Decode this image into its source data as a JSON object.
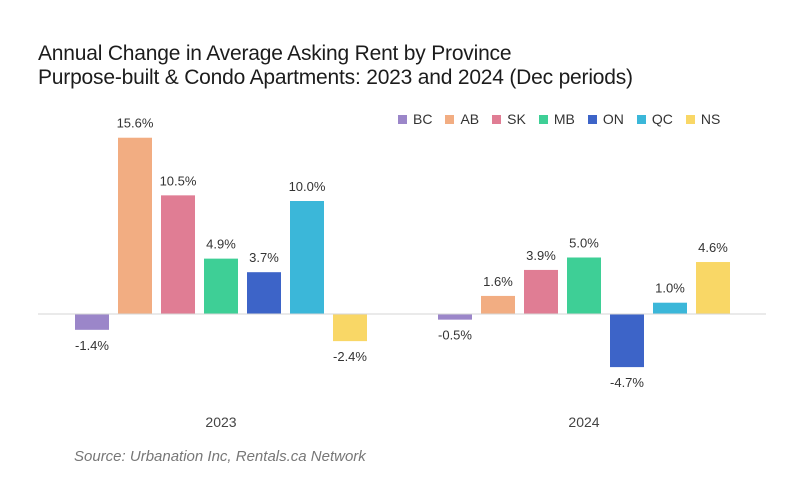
{
  "title_line1": "Annual Change in Average Asking Rent by Province",
  "title_line2": "Purpose-built & Condo Apartments: 2023 and 2024 (Dec periods)",
  "source": "Source: Urbanation Inc, Rentals.ca Network",
  "chart_data": {
    "type": "bar",
    "title": "Annual Change in Average Asking Rent by Province Purpose-built & Condo Apartments: 2023 and 2024 (Dec periods)",
    "categories": [
      "2023",
      "2024"
    ],
    "series": [
      {
        "name": "BC",
        "color": "#9b86c9",
        "values": [
          -1.4,
          -0.5
        ],
        "labels": [
          "-1.4%",
          "-0.5%"
        ]
      },
      {
        "name": "AB",
        "color": "#f2ad82",
        "values": [
          15.6,
          1.6
        ],
        "labels": [
          "15.6%",
          "1.6%"
        ]
      },
      {
        "name": "SK",
        "color": "#e07d94",
        "values": [
          10.5,
          3.9
        ],
        "labels": [
          "10.5%",
          "3.9%"
        ]
      },
      {
        "name": "MB",
        "color": "#3ecf96",
        "values": [
          4.9,
          5.0
        ],
        "labels": [
          "4.9%",
          "5.0%"
        ]
      },
      {
        "name": "ON",
        "color": "#3d64c8",
        "values": [
          3.7,
          -4.7
        ],
        "labels": [
          "3.7%",
          "-4.7%"
        ]
      },
      {
        "name": "QC",
        "color": "#3bb7d9",
        "values": [
          10.0,
          1.0
        ],
        "labels": [
          "10.0%",
          "1.0%"
        ]
      },
      {
        "name": "NS",
        "color": "#f9d766",
        "values": [
          -2.4,
          4.6
        ],
        "labels": [
          "-2.4%",
          "4.6%"
        ]
      }
    ],
    "legend_position": "top-right",
    "grid": false,
    "ylim": [
      -7,
      16
    ]
  }
}
